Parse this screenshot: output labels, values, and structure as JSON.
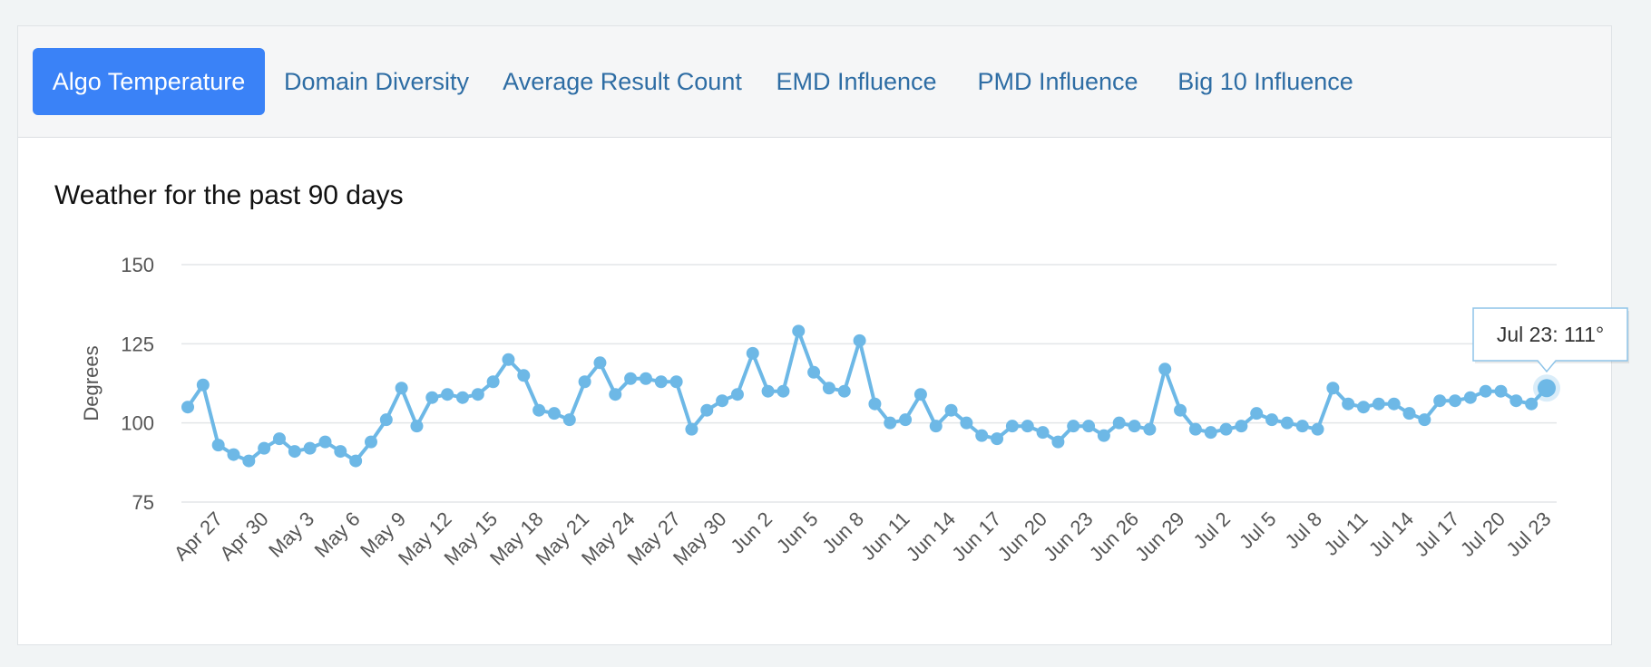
{
  "tabs": [
    {
      "label": "Algo Temperature",
      "active": true
    },
    {
      "label": "Domain Diversity",
      "active": false
    },
    {
      "label": "Average Result Count",
      "active": false
    },
    {
      "label": "EMD Influence",
      "active": false
    },
    {
      "label": "PMD Influence",
      "active": false
    },
    {
      "label": "Big 10 Influence",
      "active": false
    }
  ],
  "colors": {
    "accent": "#3a82f7",
    "tab_text": "#2e6da4",
    "series": "#6db8e6",
    "grid": "#e3e6e8"
  },
  "tooltip": {
    "text": "Jul 23: 111°"
  },
  "chart_data": {
    "type": "line",
    "title": "Weather for the past 90 days",
    "ylabel": "Degrees",
    "xlabel": "",
    "ylim": [
      75,
      150
    ],
    "yticks": [
      75,
      100,
      125,
      150
    ],
    "grid": true,
    "x_tick_labels": [
      "Apr 27",
      "Apr 30",
      "May 3",
      "May 6",
      "May 9",
      "May 12",
      "May 15",
      "May 18",
      "May 21",
      "May 24",
      "May 27",
      "May 30",
      "Jun 2",
      "Jun 5",
      "Jun 8",
      "Jun 11",
      "Jun 14",
      "Jun 17",
      "Jun 20",
      "Jun 23",
      "Jun 26",
      "Jun 29",
      "Jul 2",
      "Jul 5",
      "Jul 8",
      "Jul 11",
      "Jul 14",
      "Jul 17",
      "Jul 20",
      "Jul 23"
    ],
    "series": [
      {
        "values": [
          105,
          112,
          93,
          90,
          88,
          92,
          95,
          91,
          92,
          94,
          91,
          88,
          94,
          101,
          111,
          99,
          108,
          109,
          108,
          109,
          113,
          120,
          115,
          104,
          103,
          101,
          113,
          119,
          109,
          114,
          114,
          113,
          113,
          98,
          104,
          107,
          109,
          122,
          110,
          110,
          129,
          116,
          111,
          110,
          126,
          106,
          100,
          101,
          109,
          99,
          104,
          100,
          96,
          95,
          99,
          99,
          97,
          94,
          99,
          99,
          96,
          100,
          99,
          98,
          117,
          104,
          98,
          97,
          98,
          99,
          103,
          101,
          100,
          99,
          98,
          111,
          106,
          105,
          106,
          106,
          103,
          101,
          107,
          107,
          108,
          110,
          110,
          107,
          106,
          111
        ]
      }
    ]
  }
}
